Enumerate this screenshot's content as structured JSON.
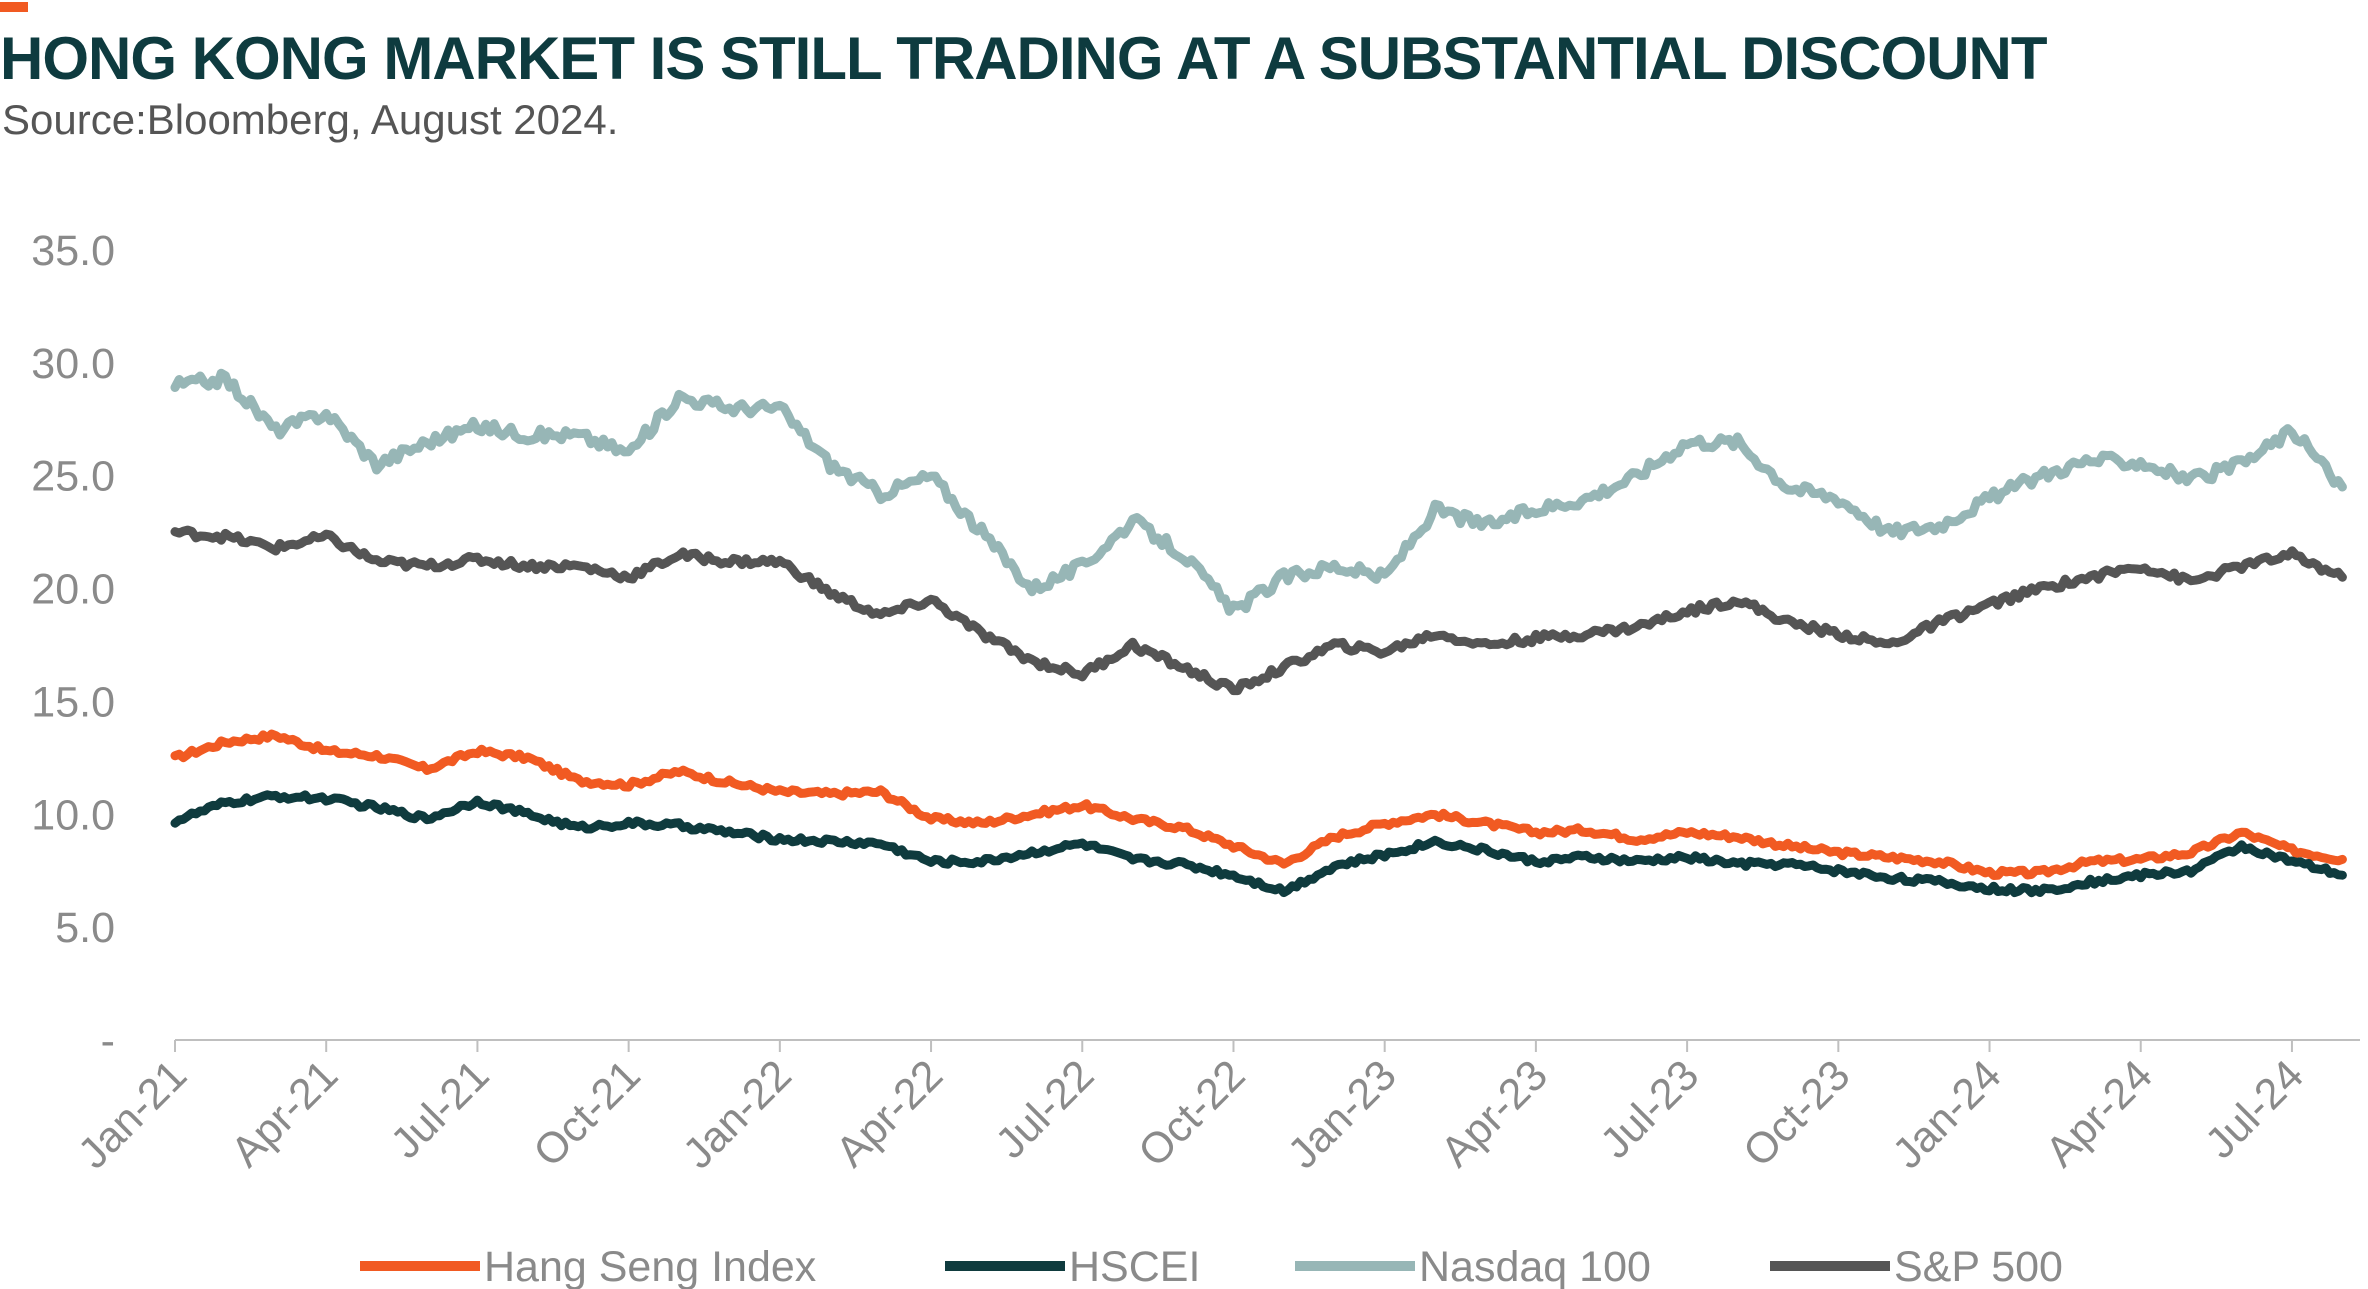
{
  "header": {
    "title": "HONG KONG MARKET IS STILL TRADING AT A SUBSTANTIAL DISCOUNT",
    "subtitle": "Source:Bloomberg, August 2024.",
    "accent_color": "#f15a22"
  },
  "chart_data": {
    "type": "line",
    "title": "HONG KONG MARKET IS STILL TRADING AT A SUBSTANTIAL DISCOUNT",
    "xlabel": "",
    "ylabel": "",
    "ylim": [
      0,
      35
    ],
    "yticks": [
      0,
      5,
      10,
      15,
      20,
      25,
      30,
      35
    ],
    "ytick_labels": [
      "-",
      "5.0",
      "10.0",
      "15.0",
      "20.0",
      "25.0",
      "30.0",
      "35.0"
    ],
    "x_tick_labels": [
      "Jan-21",
      "Apr-21",
      "Jul-21",
      "Oct-21",
      "Jan-22",
      "Apr-22",
      "Jul-22",
      "Oct-22",
      "Jan-23",
      "Apr-23",
      "Jul-23",
      "Oct-23",
      "Jan-24",
      "Apr-24",
      "Jul-24"
    ],
    "x": [
      "Jan-21",
      "Feb-21",
      "Mar-21",
      "Apr-21",
      "May-21",
      "Jun-21",
      "Jul-21",
      "Aug-21",
      "Sep-21",
      "Oct-21",
      "Nov-21",
      "Dec-21",
      "Jan-22",
      "Feb-22",
      "Mar-22",
      "Apr-22",
      "May-22",
      "Jun-22",
      "Jul-22",
      "Aug-22",
      "Sep-22",
      "Oct-22",
      "Nov-22",
      "Dec-22",
      "Jan-23",
      "Feb-23",
      "Mar-23",
      "Apr-23",
      "May-23",
      "Jun-23",
      "Jul-23",
      "Aug-23",
      "Sep-23",
      "Oct-23",
      "Nov-23",
      "Dec-23",
      "Jan-24",
      "Feb-24",
      "Mar-24",
      "Apr-24",
      "May-24",
      "Jun-24",
      "Jul-24",
      "Aug-24"
    ],
    "series": [
      {
        "name": "Hang Seng Index",
        "color": "#f15a22",
        "values": [
          12.5,
          13.2,
          13.5,
          12.8,
          12.6,
          12.0,
          12.8,
          12.5,
          11.5,
          11.3,
          11.9,
          11.4,
          11.0,
          10.9,
          11.0,
          9.8,
          9.6,
          10.0,
          10.4,
          9.8,
          9.4,
          8.6,
          7.8,
          9.0,
          9.6,
          10.0,
          9.6,
          9.2,
          9.3,
          8.9,
          9.2,
          9.0,
          8.6,
          8.3,
          8.1,
          7.9,
          7.4,
          7.4,
          7.9,
          8.0,
          8.3,
          9.2,
          8.4,
          8.0
        ]
      },
      {
        "name": "HSCEI",
        "color": "#0f3b3e",
        "values": [
          9.7,
          10.5,
          10.8,
          10.7,
          10.3,
          9.8,
          10.6,
          10.0,
          9.4,
          9.6,
          9.5,
          9.2,
          8.9,
          8.8,
          8.7,
          7.9,
          7.9,
          8.3,
          8.7,
          8.0,
          7.8,
          7.3,
          6.6,
          7.7,
          8.2,
          8.8,
          8.4,
          7.9,
          8.1,
          7.9,
          8.1,
          7.8,
          7.8,
          7.5,
          7.2,
          7.0,
          6.7,
          6.6,
          7.0,
          7.3,
          7.5,
          8.6,
          7.9,
          7.3
        ]
      },
      {
        "name": "Nasdaq 100",
        "color": "#97b6b6",
        "values": [
          29.0,
          29.3,
          27.0,
          27.8,
          25.5,
          26.5,
          27.2,
          26.8,
          26.8,
          26.0,
          28.5,
          28.0,
          28.0,
          25.5,
          24.2,
          25.0,
          22.5,
          20.0,
          21.0,
          23.0,
          21.5,
          19.0,
          20.5,
          21.0,
          20.5,
          23.5,
          22.8,
          23.5,
          24.0,
          25.0,
          26.5,
          26.5,
          24.5,
          24.0,
          22.5,
          22.8,
          24.0,
          25.0,
          25.7,
          25.6,
          24.8,
          25.5,
          27.0,
          24.5
        ]
      },
      {
        "name": "S&P 500",
        "color": "#555555",
        "values": [
          22.5,
          22.3,
          21.8,
          22.3,
          21.2,
          21.0,
          21.3,
          21.0,
          21.0,
          20.5,
          21.5,
          21.2,
          21.2,
          19.8,
          18.8,
          19.5,
          18.0,
          16.8,
          16.2,
          17.5,
          16.5,
          15.5,
          16.5,
          17.5,
          17.2,
          18.0,
          17.5,
          17.8,
          18.0,
          18.3,
          19.0,
          19.5,
          18.5,
          18.0,
          17.5,
          18.5,
          19.3,
          20.0,
          20.5,
          21.0,
          20.3,
          21.0,
          21.5,
          20.5
        ]
      }
    ],
    "legend_position": "bottom",
    "grid": false
  }
}
